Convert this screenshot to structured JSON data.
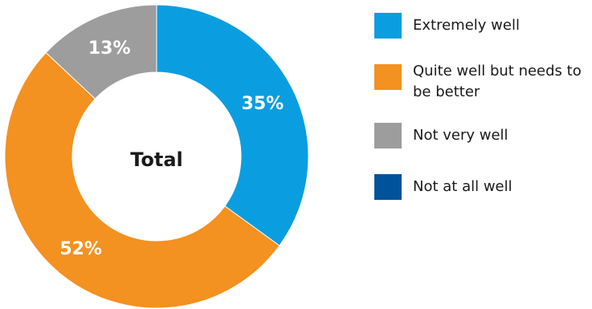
{
  "chart_data": {
    "type": "pie",
    "center_label": "Total",
    "slices": [
      {
        "label": "Extremely well",
        "value": 35,
        "value_label": "35%",
        "color": "#0a9ee0"
      },
      {
        "label": "Quite well but needs to be better",
        "value": 52,
        "value_label": "52%",
        "color": "#f39121"
      },
      {
        "label": "Not very well",
        "value": 13,
        "value_label": "13%",
        "color": "#9d9d9d"
      },
      {
        "label": "Not at all well",
        "value": 0,
        "value_label": "",
        "color": "#00529b"
      }
    ],
    "legend": {
      "position": "right",
      "entries": [
        "Extremely well",
        "Quite well but needs to be better",
        "Not very well",
        "Not at all well"
      ]
    }
  }
}
